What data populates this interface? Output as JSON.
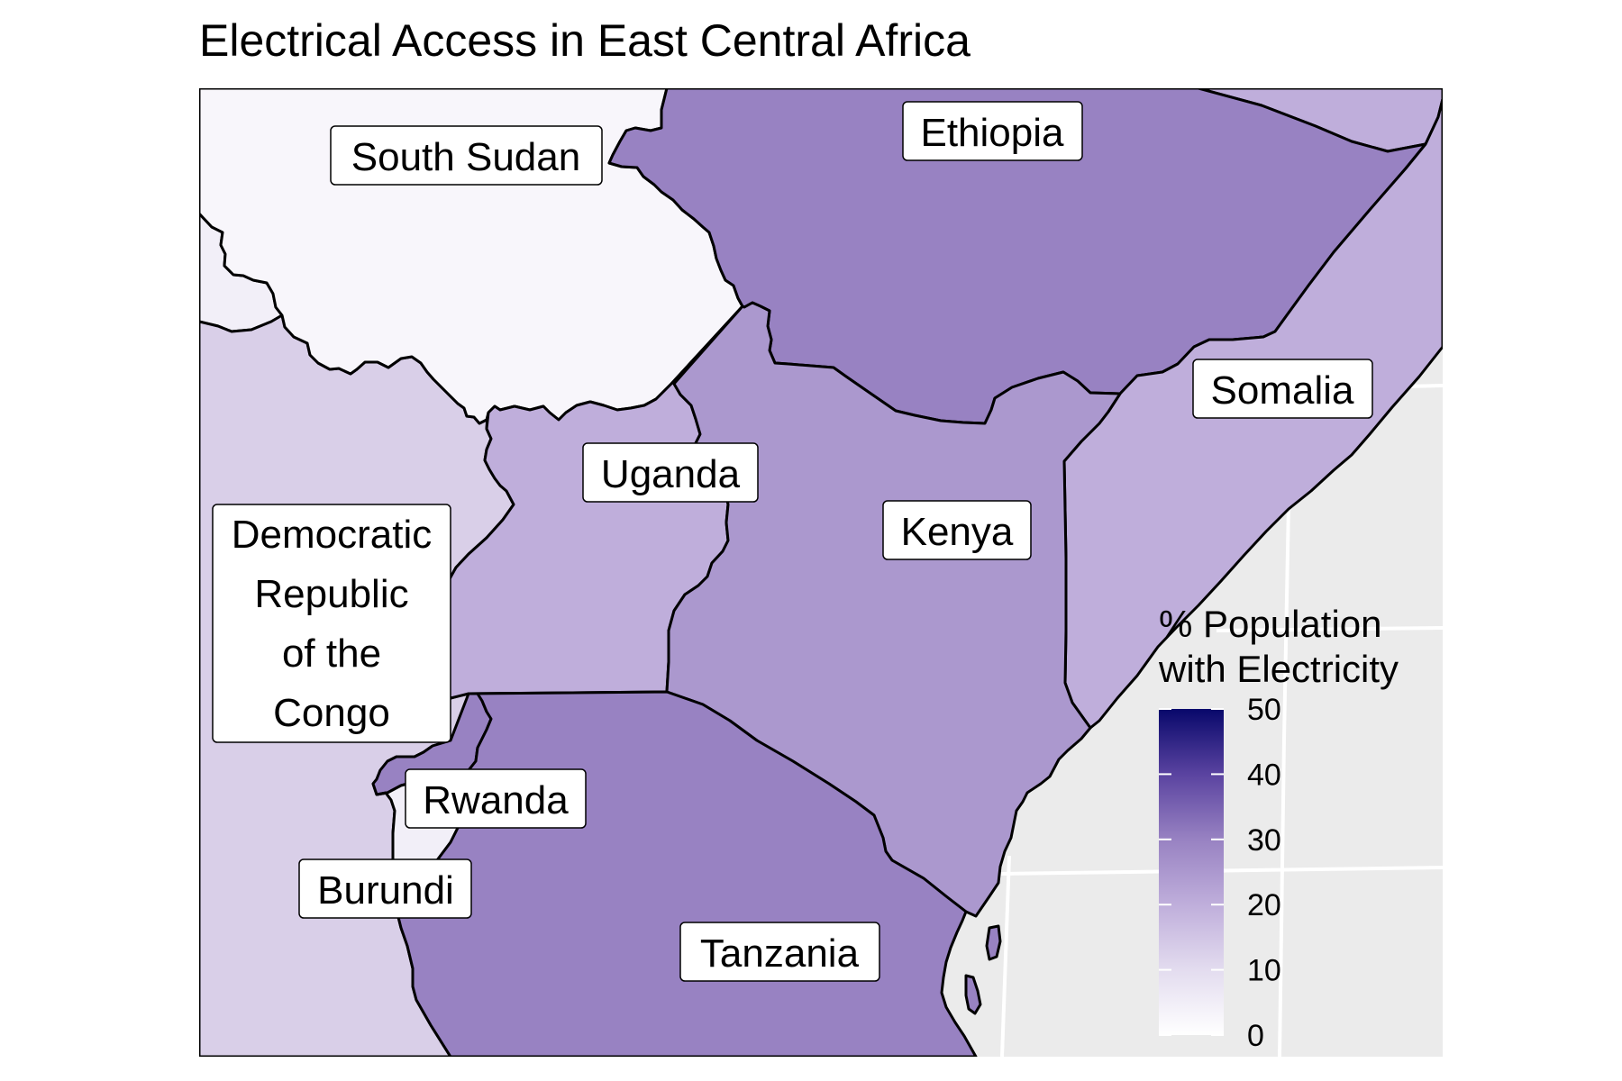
{
  "title": "Electrical Access in East Central Africa",
  "legend": {
    "title_line1": "% Population",
    "title_line2": "with Electricity",
    "ticks": [
      "0",
      "10",
      "20",
      "30",
      "40",
      "50"
    ],
    "color_low": "#ffffff",
    "color_high": "#08086b",
    "range": [
      0,
      50
    ]
  },
  "colors": {
    "ocean": "#ebebeb",
    "grid": "#ffffff",
    "border": "#000000"
  },
  "countries": {
    "south_sudan": {
      "label": "South Sudan",
      "color": "#f8f6fb"
    },
    "ethiopia": {
      "label": "Ethiopia",
      "color": "#9882c2"
    },
    "somalia": {
      "label": "Somalia",
      "color": "#bfaedb"
    },
    "uganda": {
      "label": "Uganda",
      "color": "#bfaedb"
    },
    "kenya": {
      "label": "Kenya",
      "color": "#ab98ce"
    },
    "drc": {
      "label_lines": [
        "Democratic",
        "Republic",
        "of the",
        "Congo"
      ],
      "color": "#d9cfe8"
    },
    "rwanda": {
      "label": "Rwanda",
      "color": "#9882c2"
    },
    "burundi": {
      "label": "Burundi",
      "color": "#f2eff8"
    },
    "tanzania": {
      "label": "Tanzania",
      "color": "#9882c2"
    },
    "car": {
      "color": "#f2eff8"
    },
    "eritrea": {
      "color": "#bfaedb"
    }
  }
}
